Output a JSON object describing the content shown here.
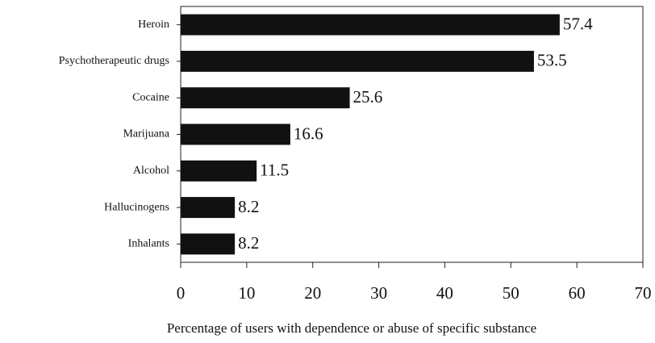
{
  "chart_data": {
    "type": "bar",
    "orientation": "horizontal",
    "xlabel": "Percentage of users with dependence or abuse of specific substance",
    "categories": [
      "Heroin",
      "Psychotherapeutic drugs",
      "Cocaine",
      "Marijuana",
      "Alcohol",
      "Hallucinogens",
      "Inhalants"
    ],
    "values": [
      57.4,
      53.5,
      25.6,
      16.6,
      11.5,
      8.2,
      8.2
    ],
    "color": "#111111",
    "xlim": [
      0,
      70
    ],
    "xticks": [
      0,
      10,
      20,
      30,
      40,
      50,
      60,
      70
    ]
  }
}
